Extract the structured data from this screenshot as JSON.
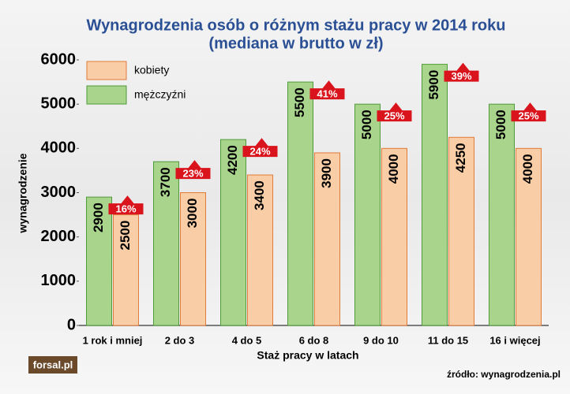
{
  "chart_data": {
    "type": "bar",
    "title": "Wynagrodzenia osób o różnym stażu pracy w 2014 roku",
    "subtitle": "(mediana w  brutto w zł)",
    "x_label": "Staż pracy w latach",
    "y_label": "wynagrodzenie",
    "source": "źródło: wynagrodzenia.pl",
    "logo": "forsal.pl",
    "categories": [
      "1 rok i mniej",
      "2 do 3",
      "4 do 5",
      "6 do 8",
      "9 do 10",
      "11 do 15",
      "16 i więcej"
    ],
    "series": [
      {
        "name": "kobiety",
        "color": "#f9cda6",
        "values": [
          2500,
          3000,
          3400,
          3900,
          4000,
          4250,
          4000
        ]
      },
      {
        "name": "mężczyźni",
        "color": "#a8d48c",
        "values": [
          2900,
          3700,
          4200,
          5500,
          5000,
          5900,
          5000
        ]
      }
    ],
    "gap_labels": [
      "16%",
      "23%",
      "24%",
      "41%",
      "25%",
      "39%",
      "25%"
    ],
    "ylim": [
      0,
      6000
    ],
    "yticks": [
      0,
      1000,
      2000,
      3000,
      4000,
      5000,
      6000
    ]
  }
}
